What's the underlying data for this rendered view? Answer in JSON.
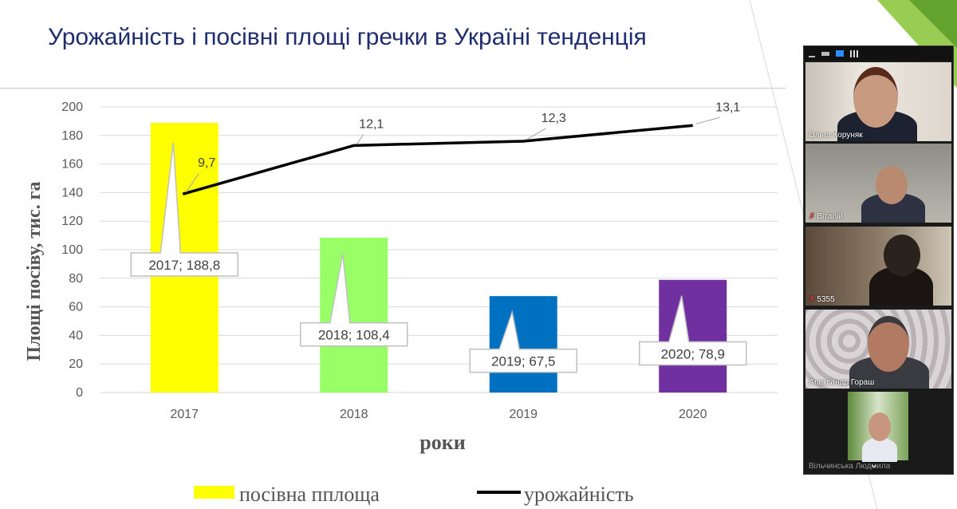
{
  "slide": {
    "title": "Урожайність і посівні площі гречки в Україні тенденція"
  },
  "chart_data": {
    "type": "bar",
    "categories": [
      "2017",
      "2018",
      "2019",
      "2020"
    ],
    "series": [
      {
        "name": "посівна пплоща",
        "kind": "bar",
        "values": [
          188.8,
          108.4,
          67.5,
          78.9
        ],
        "colors": [
          "#ffff00",
          "#99ff66",
          "#0070c0",
          "#7030a0"
        ],
        "data_labels": [
          "2017; 188,8",
          "2018; 108,4",
          "2019; 67,5",
          "2020; 78,9"
        ]
      },
      {
        "name": "урожайність",
        "kind": "line",
        "values": [
          9.7,
          12.1,
          12.3,
          13.1
        ],
        "plot_values": [
          139,
          173,
          176,
          187
        ],
        "color": "#000000",
        "data_labels": [
          "9,7",
          "12,1",
          "12,3",
          "13,1"
        ]
      }
    ],
    "ylabel": "Площі посіву, тис. га",
    "xlabel": "роки",
    "ylim": [
      0,
      200
    ],
    "yticks": [
      "0",
      "20",
      "40",
      "60",
      "80",
      "100",
      "120",
      "140",
      "160",
      "180",
      "200"
    ],
    "grid": true,
    "legend_position": "bottom"
  },
  "video_panel": {
    "participants": [
      {
        "name": "Ольга Коруняк",
        "muted": false
      },
      {
        "name": "Віталій",
        "muted": true
      },
      {
        "name": "5355",
        "muted": true
      },
      {
        "name": "Александр Гораш",
        "muted": false
      },
      {
        "name": "Вільчинська Людмила",
        "muted": false
      }
    ],
    "scroll_icon": "chevron-down-icon"
  },
  "colors": {
    "title": "#1f2d6e",
    "accent_green": "#8dc63f"
  }
}
